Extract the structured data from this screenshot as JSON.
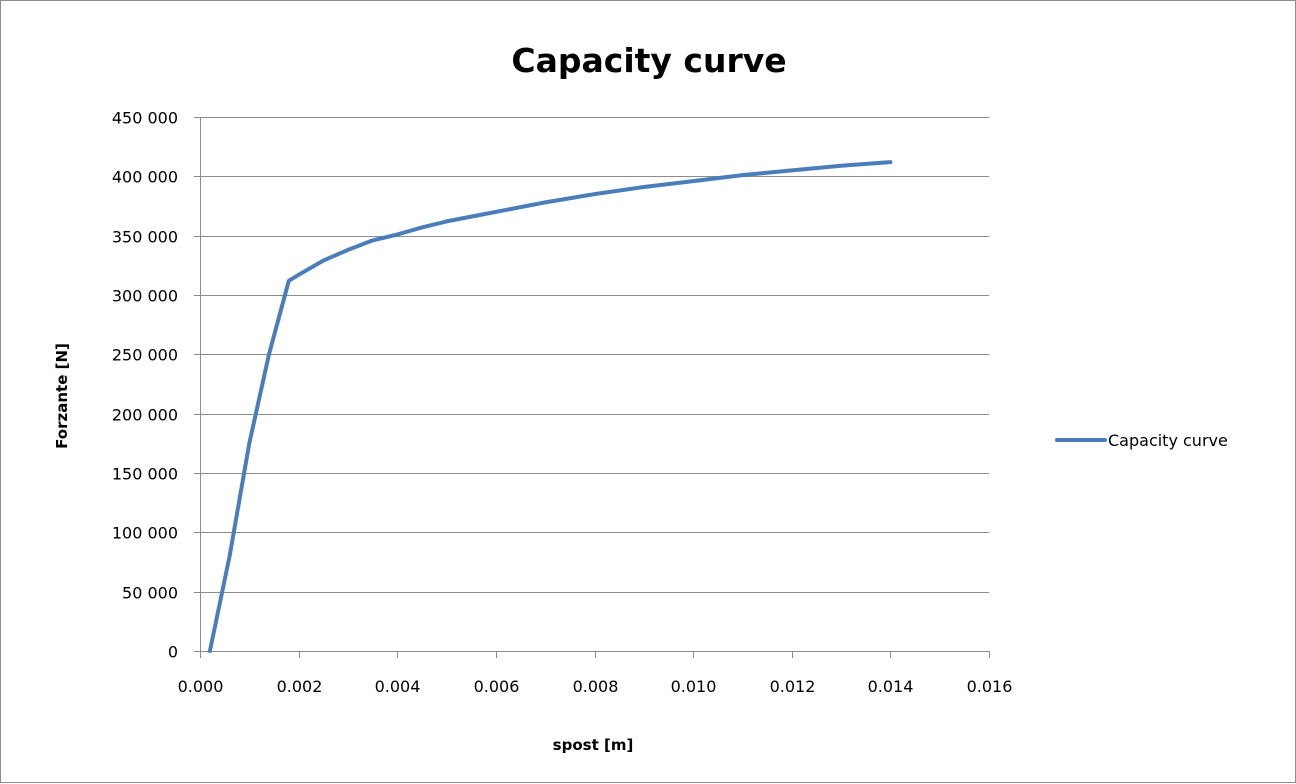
{
  "chart_data": {
    "type": "line",
    "title": "Capacity curve",
    "xlabel": "spost [m]",
    "ylabel": "Forzante [N]",
    "xlim": [
      0.0,
      0.016
    ],
    "ylim": [
      0,
      450000
    ],
    "x_ticks": [
      "0.000",
      "0.002",
      "0.004",
      "0.006",
      "0.008",
      "0.010",
      "0.012",
      "0.014",
      "0.016"
    ],
    "y_ticks": [
      "0",
      "50 000",
      "100 000",
      "150 000",
      "200 000",
      "250 000",
      "300 000",
      "350 000",
      "400 000",
      "450 000"
    ],
    "grid": "horizontal",
    "legend_position": "right",
    "colors": {
      "series": "#4a7ebb",
      "grid": "#8c8c8c",
      "axis": "#8c8c8c"
    },
    "series": [
      {
        "name": "Capacity curve",
        "x": [
          0.0002,
          0.0006,
          0.001,
          0.0014,
          0.0018,
          0.002,
          0.0025,
          0.003,
          0.0035,
          0.004,
          0.0045,
          0.005,
          0.006,
          0.007,
          0.008,
          0.009,
          0.01,
          0.011,
          0.012,
          0.013,
          0.014
        ],
        "y": [
          0,
          80000,
          175000,
          250000,
          312000,
          317000,
          329000,
          338000,
          346000,
          351000,
          357000,
          362000,
          370000,
          378000,
          385000,
          391000,
          396000,
          401000,
          405000,
          409000,
          412000
        ]
      }
    ]
  }
}
